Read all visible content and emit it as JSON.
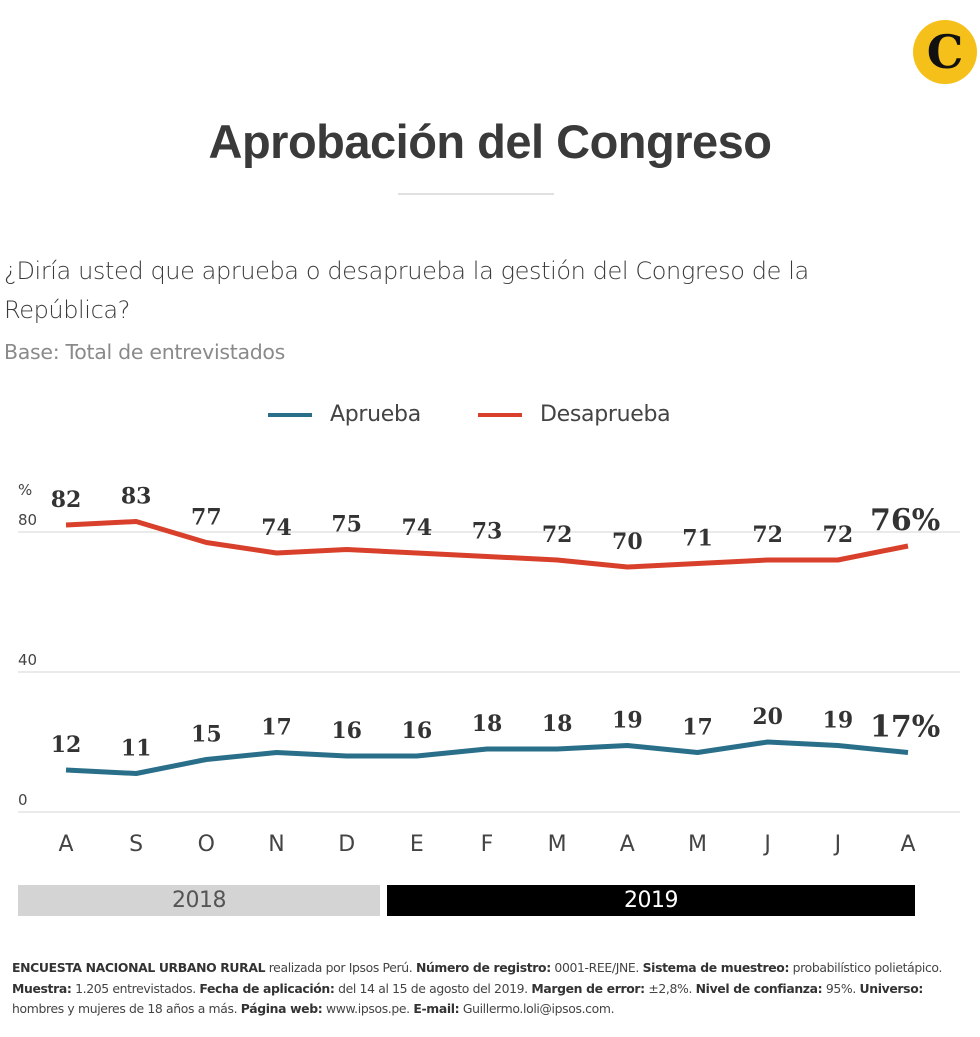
{
  "logo": {
    "icon": "el-comercio-c-icon",
    "glyph": "C",
    "color": "#f5c01a"
  },
  "title": "Aprobación del Congreso",
  "question": "¿Diría usted que aprueba o desaprueba la gestión del Congreso de la República?",
  "base": "Base: Total de entrevistados",
  "legend": [
    {
      "label": "Aprueba",
      "color": "#2a6f8a"
    },
    {
      "label": "Desaprueba",
      "color": "#d8402b"
    }
  ],
  "chart_data": {
    "type": "line",
    "title": "Aprobación del Congreso",
    "xlabel": "",
    "ylabel": "%",
    "ylim": [
      0,
      80
    ],
    "yticks": [
      0,
      40,
      80
    ],
    "grid": true,
    "legend_position": "top-center",
    "categories": [
      "A",
      "S",
      "O",
      "N",
      "D",
      "E",
      "F",
      "M",
      "A",
      "M",
      "J",
      "J",
      "A"
    ],
    "series": [
      {
        "name": "Aprueba",
        "color": "#2a6f8a",
        "values": [
          12,
          11,
          15,
          17,
          16,
          16,
          18,
          18,
          19,
          17,
          20,
          19,
          17
        ]
      },
      {
        "name": "Desaprueba",
        "color": "#d8402b",
        "values": [
          82,
          83,
          77,
          74,
          75,
          74,
          73,
          72,
          70,
          71,
          72,
          72,
          76
        ]
      }
    ],
    "last_label_suffix": "%",
    "year_groups": [
      {
        "label": "2018",
        "months": 5
      },
      {
        "label": "2019",
        "months": 8
      }
    ]
  },
  "footer": [
    {
      "b": "ENCUESTA NACIONAL URBANO RURAL",
      "t": " realizada por Ipsos Perú. "
    },
    {
      "b": "Número de registro:",
      "t": " 0001-REE/JNE. "
    },
    {
      "b": "Sistema de muestreo:",
      "t": " probabilístico polietápico. "
    },
    {
      "b": "Muestra:",
      "t": " 1.205 entrevistados. "
    },
    {
      "b": "Fecha de aplicación:",
      "t": " del 14 al 15 de agosto del 2019. "
    },
    {
      "b": "Margen de error:",
      "t": " ±2,8%. "
    },
    {
      "b": "Nivel de confianza:",
      "t": " 95%. "
    },
    {
      "b": "Universo:",
      "t": " hombres y mujeres de 18 años a más. "
    },
    {
      "b": "Página web:",
      "t": " www.ipsos.pe. "
    },
    {
      "b": "E-mail:",
      "t": " Guillermo.loli@ipsos.com."
    }
  ]
}
